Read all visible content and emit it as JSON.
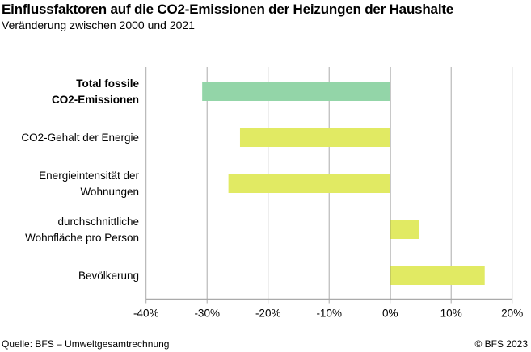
{
  "title": "Einflussfaktoren auf die CO2-Emissionen der Heizungen der Haushalte",
  "subtitle": "Veränderung zwischen 2000 und 2021",
  "source": "Quelle: BFS – Umweltgesamtrechnung",
  "copyright": "© BFS 2023",
  "chart_data": {
    "type": "bar",
    "orientation": "horizontal",
    "title": "Einflussfaktoren auf die CO2-Emissionen der Heizungen der Haushalte",
    "subtitle": "Veränderung zwischen 2000 und 2021",
    "categories": [
      {
        "lines": [
          "Total fossile",
          "CO2-Emissionen"
        ],
        "bold": true
      },
      {
        "lines": [
          "CO2-Gehalt der Energie"
        ],
        "bold": false
      },
      {
        "lines": [
          "Energieintensität der",
          "Wohnungen"
        ],
        "bold": false
      },
      {
        "lines": [
          "durchschnittliche",
          "Wohnfläche pro Person"
        ],
        "bold": false
      },
      {
        "lines": [
          "Bevölkerung"
        ],
        "bold": false
      }
    ],
    "values": [
      -30.8,
      -24.6,
      -26.5,
      4.7,
      15.5
    ],
    "colors": [
      "#93d5a8",
      "#e1ea63",
      "#e1ea63",
      "#e1ea63",
      "#e1ea63"
    ],
    "xlim": [
      -40,
      20
    ],
    "xticks": [
      -40,
      -30,
      -20,
      -10,
      0,
      10,
      20
    ],
    "xtick_labels": [
      "-40%",
      "-30%",
      "-20%",
      "-10%",
      "0%",
      "10%",
      "20%"
    ],
    "xlabel": "",
    "ylabel": "",
    "grid": true,
    "legend": "none"
  }
}
